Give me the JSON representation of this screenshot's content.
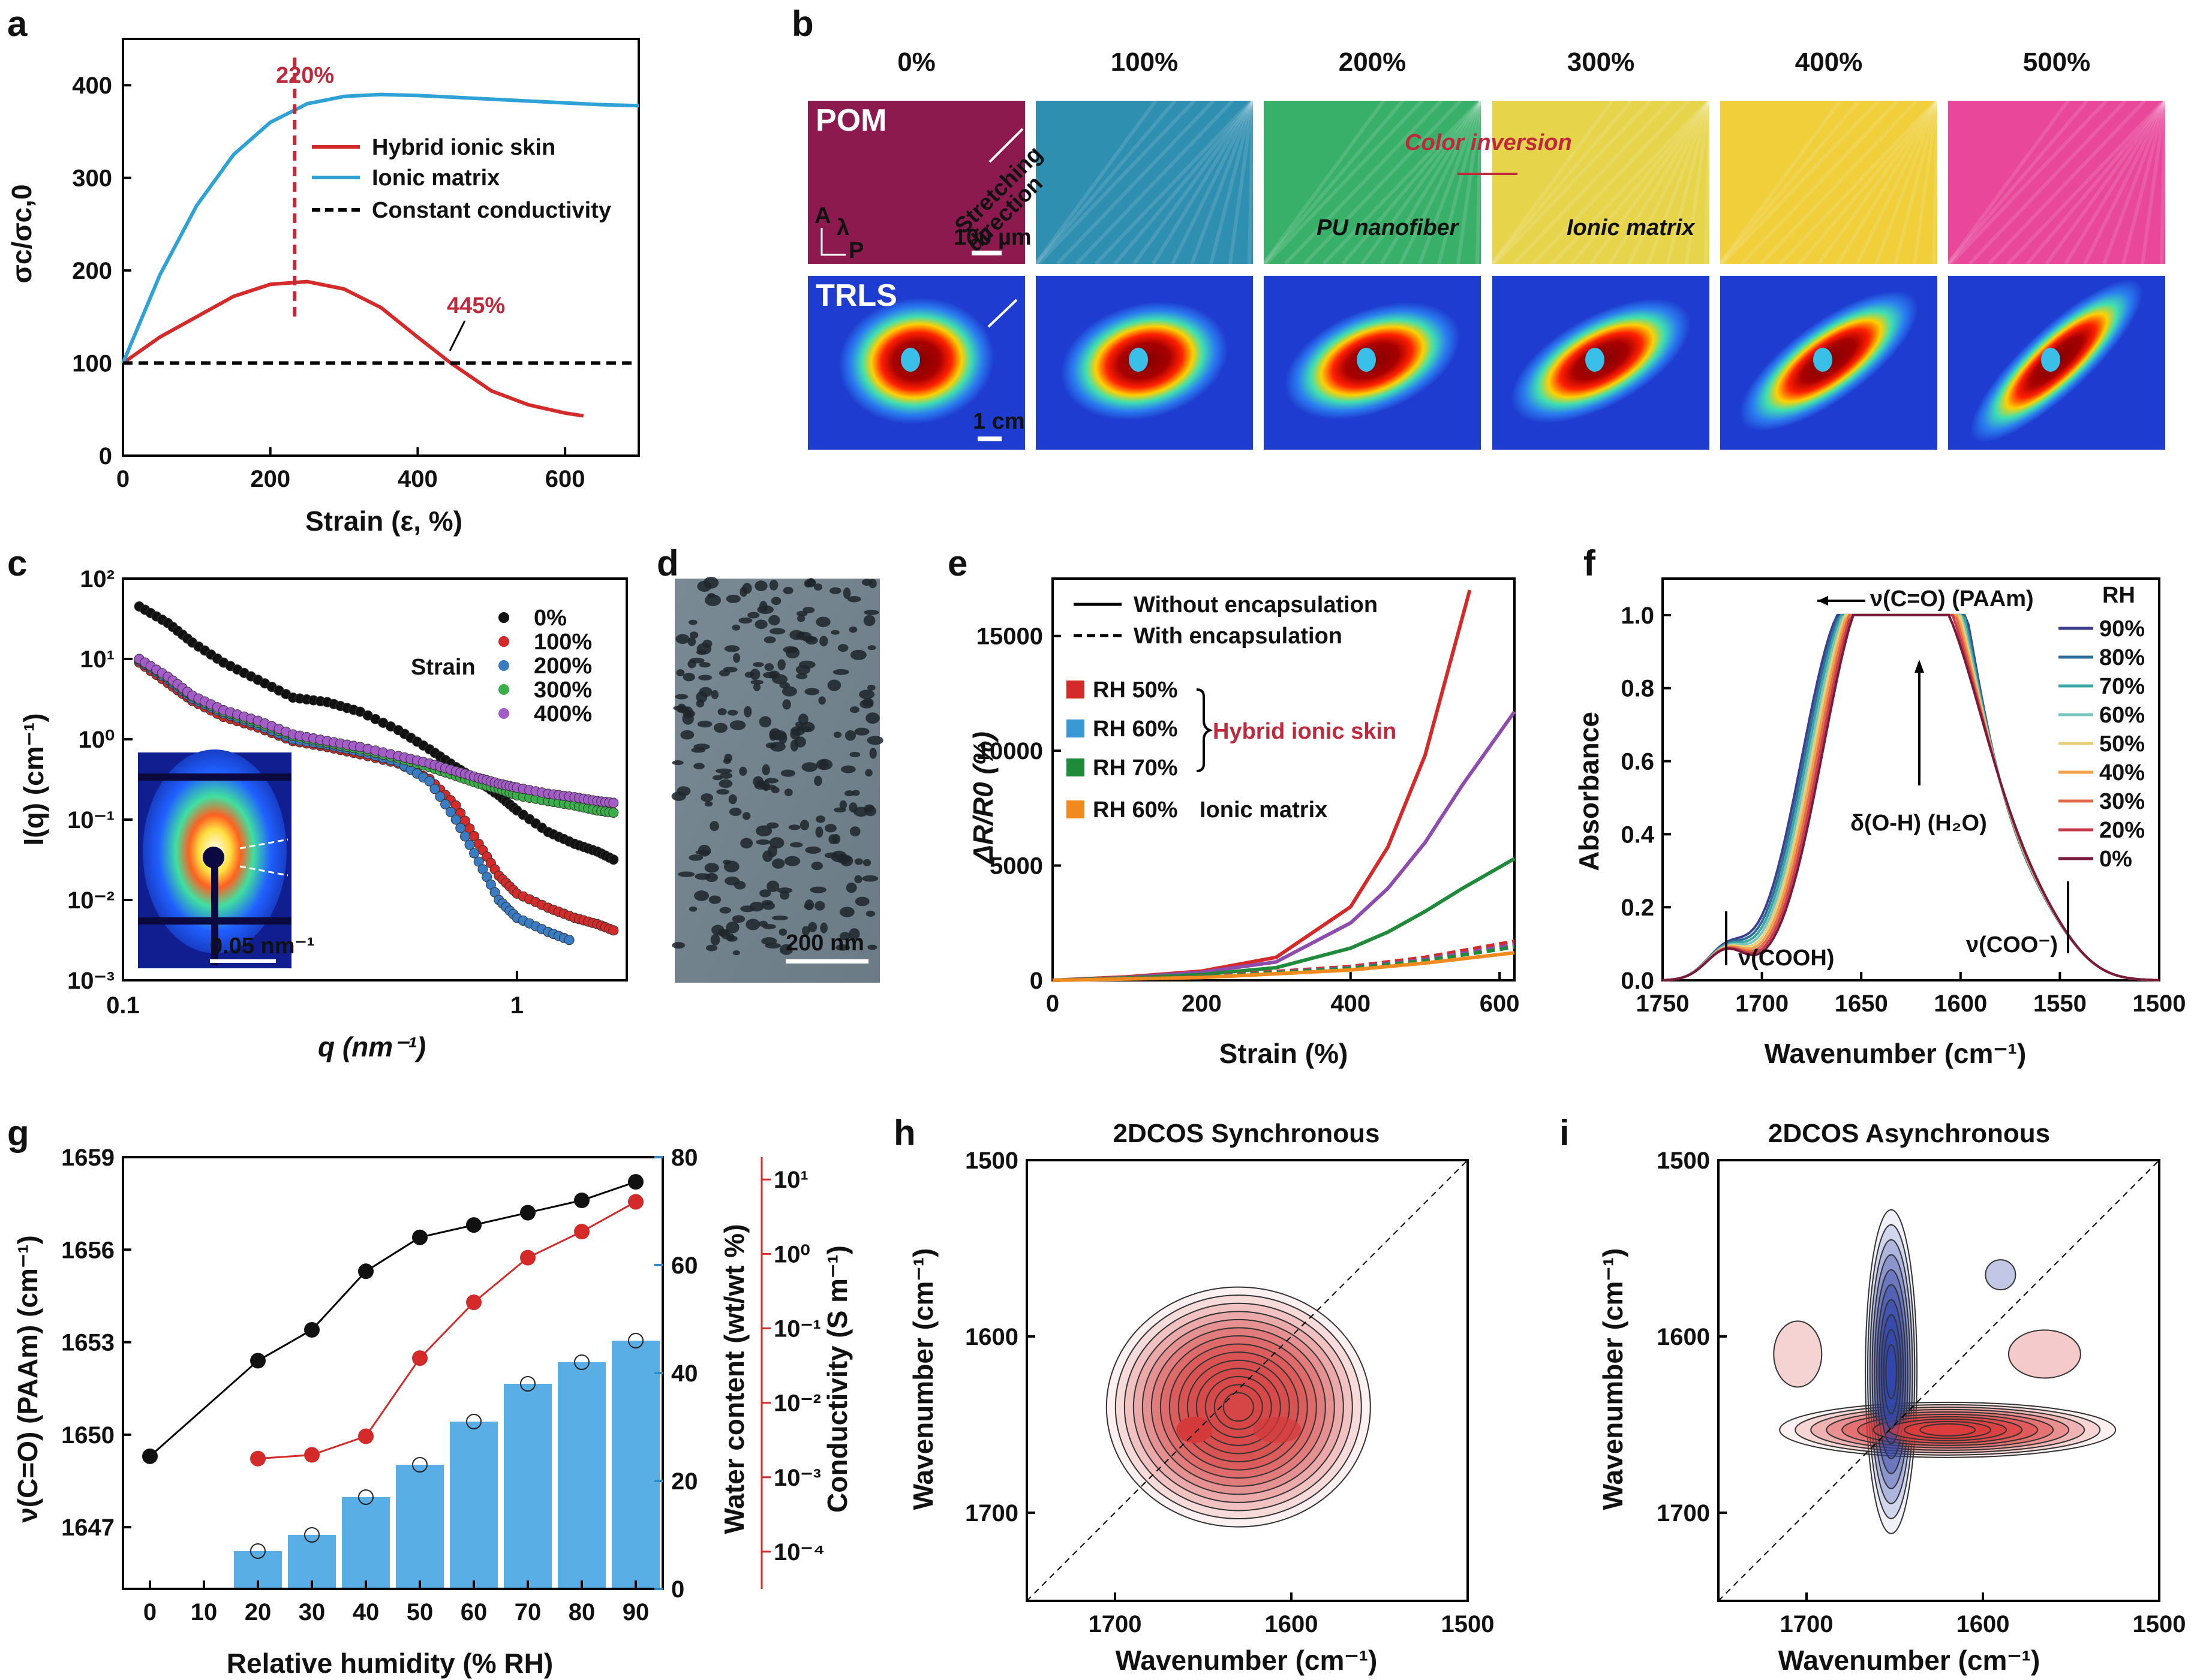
{
  "panels": {
    "a": {
      "letter": "a",
      "ylabel": "σc/σc,0",
      "xlabel": "Strain (ε, %)",
      "annotations": {
        "peak": "220%",
        "cross": "445%"
      },
      "legend": [
        "Hybrid ionic skin",
        "Ionic matrix",
        "Constant conductivity"
      ]
    },
    "b": {
      "letter": "b",
      "columns": [
        "0%",
        "100%",
        "200%",
        "300%",
        "400%",
        "500%"
      ],
      "row_labels": [
        "POM",
        "TRLS"
      ],
      "texts": {
        "stretch1": "Stretching",
        "stretch2": "direction",
        "scale_pom": "100 µm",
        "scale_trls": "1 cm",
        "color_inversion": "Color inversion",
        "pu": "PU nanofiber",
        "ionic": "Ionic matrix",
        "axA": "A",
        "axL": "λ",
        "axP": "P"
      }
    },
    "c": {
      "letter": "c",
      "ylabel": "I(q) (cm⁻¹)",
      "xlabel": "q (nm⁻¹)",
      "legend_title": "Strain",
      "legend": [
        "0%",
        "100%",
        "200%",
        "300%",
        "400%"
      ],
      "inset_scale": "0.05 nm⁻¹"
    },
    "d": {
      "letter": "d",
      "scale": "200 nm"
    },
    "e": {
      "letter": "e",
      "ylabel": "ΔR/R0 (%)",
      "xlabel": "Strain (%)",
      "line_legend": [
        "Without encapsulation",
        "With encapsulation"
      ],
      "legend": [
        "RH 50%",
        "RH 60%",
        "RH 70%",
        "RH 60%"
      ],
      "group1": "Hybrid ionic skin",
      "group2": "Ionic matrix"
    },
    "f": {
      "letter": "f",
      "ylabel": "Absorbance",
      "xlabel": "Wavenumber (cm⁻¹)",
      "legend_title": "RH",
      "legend": [
        "90%",
        "80%",
        "70%",
        "60%",
        "50%",
        "40%",
        "30%",
        "20%",
        "0%"
      ],
      "annotations": {
        "co": "ν(C=O) (PAAm)",
        "oh": "δ(O-H) (H₂O)",
        "cooh": "ν(COOH)",
        "coo": "ν(COO⁻)"
      }
    },
    "g": {
      "letter": "g",
      "ylabel": "ν(C=O) (PAAm) (cm⁻¹)",
      "ylabel2": "Water content (wt/wt %)",
      "ylabel3": "Conductivity (S m⁻¹)",
      "xlabel": "Relative humidity (% RH)"
    },
    "h": {
      "letter": "h",
      "title": "2DCOS Synchronous",
      "xlabel": "Wavenumber (cm⁻¹)",
      "ylabel": "Wavenumber (cm⁻¹)"
    },
    "i": {
      "letter": "i",
      "title": "2DCOS Asynchronous",
      "xlabel": "Wavenumber (cm⁻¹)",
      "ylabel": "Wavenumber (cm⁻¹)"
    }
  },
  "colors": {
    "red": "#d42a2a",
    "blue": "#2ea2d6",
    "black": "#000000",
    "green": "#1f8a3a",
    "purple": "#8e4cae",
    "orange": "#f08a1e",
    "bar": "#5aaee6"
  },
  "chart_data": [
    {
      "panel": "a",
      "type": "line",
      "xlim": [
        0,
        700
      ],
      "ylim": [
        0,
        450
      ],
      "xticks": [
        0,
        200,
        400,
        600
      ],
      "yticks": [
        0,
        100,
        200,
        300,
        400
      ],
      "series": [
        {
          "name": "Hybrid ionic skin",
          "x": [
            0,
            50,
            100,
            150,
            200,
            250,
            300,
            350,
            400,
            445,
            500,
            550,
            600,
            625
          ],
          "y": [
            100,
            128,
            150,
            172,
            185,
            188,
            180,
            160,
            128,
            100,
            70,
            55,
            46,
            43
          ]
        },
        {
          "name": "Ionic matrix",
          "x": [
            0,
            50,
            100,
            150,
            200,
            250,
            300,
            350,
            400,
            450,
            500,
            550,
            600,
            650,
            700
          ],
          "y": [
            100,
            195,
            270,
            325,
            360,
            380,
            388,
            390,
            389,
            387,
            385,
            383,
            381,
            379,
            378
          ]
        },
        {
          "name": "Constant conductivity",
          "x": [
            0,
            700
          ],
          "y": [
            100,
            100
          ]
        }
      ]
    },
    {
      "panel": "c",
      "type": "scatter",
      "xscale": "log",
      "yscale": "log",
      "xlim": [
        0.1,
        1.9
      ],
      "ylim": [
        0.001,
        100
      ],
      "xticks": [
        0.1,
        1
      ],
      "yticks": [
        0.001,
        0.01,
        0.1,
        1,
        10,
        100
      ],
      "series": [
        {
          "name": "0%",
          "x": [
            0.11,
            0.13,
            0.15,
            0.18,
            0.22,
            0.27,
            0.33,
            0.4,
            0.5,
            0.6,
            0.7,
            0.8,
            0.9,
            1.0,
            1.2,
            1.4,
            1.6,
            1.8
          ],
          "y": [
            45,
            28,
            16,
            9,
            5.5,
            3.3,
            2.9,
            2.2,
            1.3,
            0.75,
            0.45,
            0.3,
            0.2,
            0.13,
            0.07,
            0.05,
            0.04,
            0.03
          ]
        },
        {
          "name": "100%",
          "x": [
            0.11,
            0.13,
            0.15,
            0.18,
            0.22,
            0.27,
            0.33,
            0.4,
            0.5,
            0.6,
            0.7,
            0.8,
            0.9,
            1.0,
            1.2,
            1.4,
            1.6,
            1.8
          ],
          "y": [
            9,
            5,
            3,
            1.9,
            1.4,
            0.95,
            0.8,
            0.65,
            0.5,
            0.32,
            0.15,
            0.05,
            0.02,
            0.012,
            0.008,
            0.006,
            0.005,
            0.004
          ]
        },
        {
          "name": "200%",
          "x": [
            0.11,
            0.13,
            0.15,
            0.18,
            0.22,
            0.27,
            0.33,
            0.4,
            0.5,
            0.6,
            0.7,
            0.8,
            0.9,
            1.0,
            1.2,
            1.4
          ],
          "y": [
            9.5,
            5.5,
            3.2,
            2.1,
            1.5,
            1.0,
            0.85,
            0.7,
            0.52,
            0.3,
            0.1,
            0.03,
            0.01,
            0.006,
            0.004,
            0.003
          ]
        },
        {
          "name": "300%",
          "x": [
            0.11,
            0.13,
            0.15,
            0.18,
            0.22,
            0.27,
            0.33,
            0.4,
            0.5,
            0.6,
            0.7,
            0.8,
            0.9,
            1.0,
            1.2,
            1.4,
            1.6,
            1.8
          ],
          "y": [
            9.8,
            5.8,
            3.4,
            2.2,
            1.6,
            1.1,
            0.9,
            0.75,
            0.58,
            0.45,
            0.35,
            0.28,
            0.24,
            0.2,
            0.17,
            0.15,
            0.13,
            0.12
          ]
        },
        {
          "name": "400%",
          "x": [
            0.11,
            0.13,
            0.15,
            0.18,
            0.22,
            0.27,
            0.33,
            0.4,
            0.5,
            0.6,
            0.7,
            0.8,
            0.9,
            1.0,
            1.2,
            1.4,
            1.6,
            1.8
          ],
          "y": [
            10,
            6,
            3.5,
            2.3,
            1.7,
            1.15,
            0.95,
            0.8,
            0.62,
            0.5,
            0.4,
            0.33,
            0.28,
            0.25,
            0.21,
            0.19,
            0.17,
            0.16
          ]
        }
      ]
    },
    {
      "panel": "e",
      "type": "line",
      "xlim": [
        0,
        620
      ],
      "ylim": [
        0,
        17500
      ],
      "xticks": [
        0,
        200,
        400,
        600
      ],
      "yticks": [
        0,
        5000,
        10000,
        15000
      ],
      "series": [
        {
          "name": "RH 50%",
          "style": "solid",
          "x": [
            0,
            100,
            200,
            300,
            400,
            450,
            500,
            560
          ],
          "y": [
            0,
            150,
            400,
            1000,
            3200,
            5800,
            9800,
            17000
          ]
        },
        {
          "name": "RH 60%",
          "style": "solid",
          "x": [
            0,
            100,
            200,
            300,
            400,
            450,
            500,
            550,
            620
          ],
          "y": [
            0,
            120,
            350,
            800,
            2500,
            4000,
            6000,
            8500,
            11700
          ]
        },
        {
          "name": "RH 70%",
          "style": "solid",
          "x": [
            0,
            100,
            200,
            300,
            400,
            450,
            500,
            550,
            620
          ],
          "y": [
            0,
            100,
            250,
            550,
            1400,
            2100,
            3000,
            4000,
            5300
          ]
        },
        {
          "name": "RH 50% encapsulated",
          "style": "dashed",
          "x": [
            0,
            200,
            400,
            500,
            620
          ],
          "y": [
            0,
            170,
            600,
            1000,
            1700
          ]
        },
        {
          "name": "RH 60% encapsulated",
          "style": "dashed",
          "x": [
            0,
            200,
            400,
            500,
            620
          ],
          "y": [
            0,
            160,
            550,
            900,
            1550
          ]
        },
        {
          "name": "RH 70% encapsulated",
          "style": "dashed",
          "x": [
            0,
            200,
            400,
            500,
            620
          ],
          "y": [
            0,
            150,
            520,
            850,
            1450
          ]
        },
        {
          "name": "Ionic matrix RH 60%",
          "style": "solid",
          "x": [
            0,
            200,
            400,
            500,
            620
          ],
          "y": [
            0,
            120,
            450,
            750,
            1200
          ]
        }
      ]
    },
    {
      "panel": "f",
      "type": "line",
      "xlim": [
        1750,
        1500
      ],
      "ylim": [
        0,
        1.1
      ],
      "xticks": [
        1750,
        1700,
        1650,
        1600,
        1550,
        1500
      ],
      "yticks": [
        0,
        0.2,
        0.4,
        0.6,
        0.8,
        1.0
      ],
      "peak_positions": [
        1658,
        1648
      ]
    },
    {
      "panel": "g",
      "type": "bar",
      "x": [
        0,
        20,
        30,
        40,
        50,
        60,
        70,
        80,
        90
      ],
      "xticks": [
        0,
        10,
        20,
        30,
        40,
        50,
        60,
        70,
        80,
        90
      ],
      "ylim": [
        1645,
        1659
      ],
      "yticks": [
        1647,
        1650,
        1653,
        1656,
        1659
      ],
      "ylim2": [
        0,
        80
      ],
      "yticks2": [
        0,
        20,
        40,
        60,
        80
      ],
      "yticks3": [
        "10⁻⁴",
        "10⁻³",
        "10⁻²",
        "10⁻¹",
        "10⁰",
        "10¹"
      ],
      "peak": [
        1649.3,
        1652.4,
        1653.4,
        1655.3,
        1656.4,
        1656.8,
        1657.2,
        1657.6,
        1658.2
      ],
      "water_x": [
        20,
        30,
        40,
        50,
        60,
        70,
        80,
        90
      ],
      "water": [
        7,
        10,
        17,
        23,
        31,
        38,
        42,
        46
      ],
      "cond_x": [
        20,
        30,
        40,
        50,
        60,
        70,
        80,
        90
      ],
      "cond_log": [
        -2.75,
        -2.7,
        -2.45,
        -1.4,
        -0.65,
        -0.05,
        0.3,
        0.7
      ]
    },
    {
      "panel": "h",
      "type": "heatmap",
      "xlim": [
        1750,
        1500
      ],
      "ylim": [
        1500,
        1750
      ],
      "xticks": [
        1700,
        1600,
        1500
      ],
      "yticks": [
        1500,
        1600,
        1700
      ]
    },
    {
      "panel": "i",
      "type": "heatmap",
      "xlim": [
        1750,
        1500
      ],
      "ylim": [
        1500,
        1750
      ],
      "xticks": [
        1700,
        1600,
        1500
      ],
      "yticks": [
        1500,
        1600,
        1700
      ]
    }
  ]
}
